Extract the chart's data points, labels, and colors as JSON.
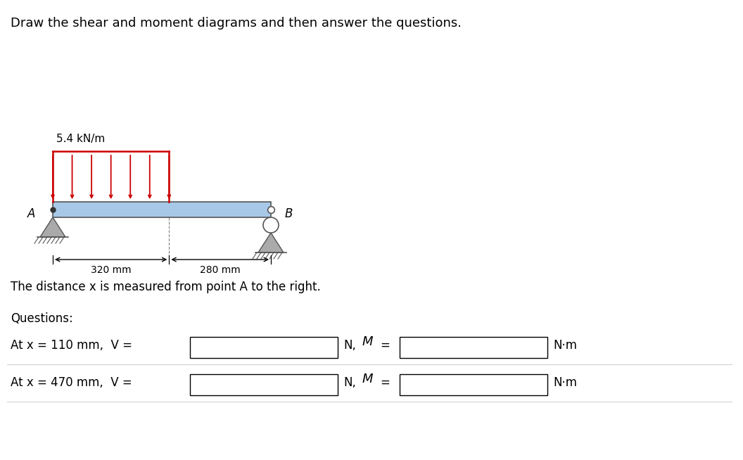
{
  "title": "Draw the shear and moment diagrams and then answer the questions.",
  "distributed_load_label": "5.4 kN/m",
  "point_A_label": "A",
  "point_B_label": "B",
  "dim1_label": "320 mm",
  "dim2_label": "280 mm",
  "distance_text": "The distance x is measured from point A to the right.",
  "questions_label": "Questions:",
  "q1_label": "At x = 110 mm,  V =",
  "q1_unit1": "N,",
  "q1_M_label": "M =",
  "q1_unit2": "N·m",
  "q2_label": "At x = 470 mm,  V =",
  "q2_unit1": "N,",
  "q2_M_label": "M =",
  "q2_unit2": "N·m",
  "bg_color": "#ffffff",
  "beam_color": "#a8c8e8",
  "beam_edge_color": "#555555",
  "load_line_color": "#cc0000",
  "support_color": "#808080",
  "text_color": "#000000",
  "box_color": "#000000",
  "box_facecolor": "#ffffff"
}
